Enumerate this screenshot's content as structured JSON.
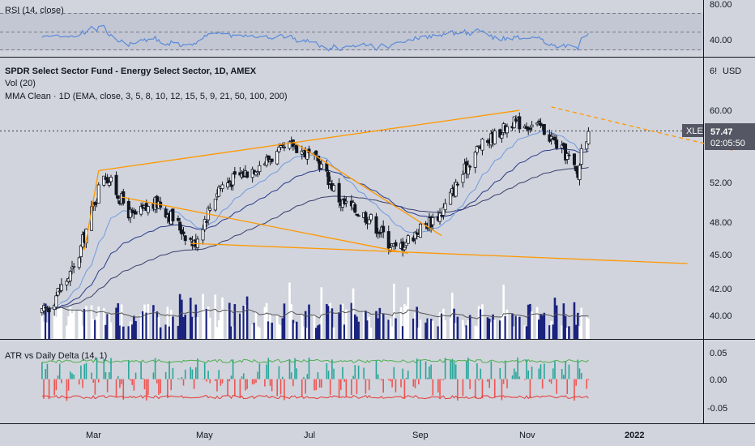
{
  "chart_data": {
    "type": "candlestick",
    "symbol": "XLE",
    "title": "SPDR Select Sector Fund - Energy Select Sector, 1D, AMEX",
    "currency_label": "USD",
    "currency_prefix": "6!",
    "last_price": "57.47",
    "countdown": "02:05:50",
    "indicators": {
      "rsi": {
        "title": "RSI (14, close)",
        "ticks": [
          "80.00",
          "40.00"
        ]
      },
      "vol": {
        "title": "Vol (20)"
      },
      "mma": {
        "title": "MMA Clean · 1D (EMA, close, 3, 5, 8, 10, 12, 15, 5, 9, 21, 50, 100, 200)"
      },
      "atr": {
        "title": "ATR vs Daily Delta (14, 1)",
        "ticks": [
          "0.05",
          "0.00",
          "-0.05"
        ]
      }
    },
    "x_axis_labels": [
      "Mar",
      "May",
      "Jul",
      "Sep",
      "Nov",
      "2022"
    ],
    "price_ticks": [
      "60.00",
      "52.00",
      "48.00",
      "45.00",
      "42.00",
      "40.00"
    ],
    "price_scale": "log",
    "price_range": [
      37.5,
      64
    ],
    "rsi_range": [
      25,
      95
    ],
    "atr_range": [
      -0.08,
      0.07
    ],
    "anchors": [
      [
        "2021-02-01",
        40.0
      ],
      [
        "2021-02-20",
        44.0
      ],
      [
        "2021-03-08",
        53.0
      ],
      [
        "2021-03-24",
        48.5
      ],
      [
        "2021-04-08",
        50.0
      ],
      [
        "2021-04-28",
        46.0
      ],
      [
        "2021-05-12",
        51.5
      ],
      [
        "2021-06-01",
        53.5
      ],
      [
        "2021-06-23",
        56.0
      ],
      [
        "2021-07-08",
        54.0
      ],
      [
        "2021-07-20",
        50.0
      ],
      [
        "2021-08-05",
        48.5
      ],
      [
        "2021-08-20",
        45.5
      ],
      [
        "2021-09-03",
        47.5
      ],
      [
        "2021-09-15",
        49.0
      ],
      [
        "2021-10-05",
        55.5
      ],
      [
        "2021-10-25",
        58.5
      ],
      [
        "2021-11-10",
        58.0
      ],
      [
        "2021-11-26",
        54.5
      ],
      [
        "2021-12-01",
        52.5
      ],
      [
        "2021-12-03",
        55.5
      ],
      [
        "2021-12-07",
        57.47
      ]
    ],
    "trendlines": [
      {
        "style": "solid",
        "points": [
          [
            "2021-03-05",
            53.2
          ],
          [
            "2021-10-29",
            59.9
          ]
        ]
      },
      {
        "style": "solid",
        "points": [
          [
            "2021-03-05",
            53.2
          ],
          [
            "2021-02-25",
            45.5
          ]
        ]
      },
      {
        "style": "solid",
        "points": [
          [
            "2021-03-18",
            50.5
          ],
          [
            "2021-08-27",
            45.2
          ]
        ]
      },
      {
        "style": "solid",
        "points": [
          [
            "2021-04-26",
            46.1
          ],
          [
            "2022-02-01",
            44.3
          ]
        ]
      },
      {
        "style": "solid",
        "points": [
          [
            "2021-06-23",
            56.3
          ],
          [
            "2021-09-15",
            46.8
          ]
        ]
      },
      {
        "style": "dashed",
        "points": [
          [
            "2021-11-16",
            60.3
          ],
          [
            "2022-02-28",
            55.3
          ]
        ]
      }
    ]
  }
}
